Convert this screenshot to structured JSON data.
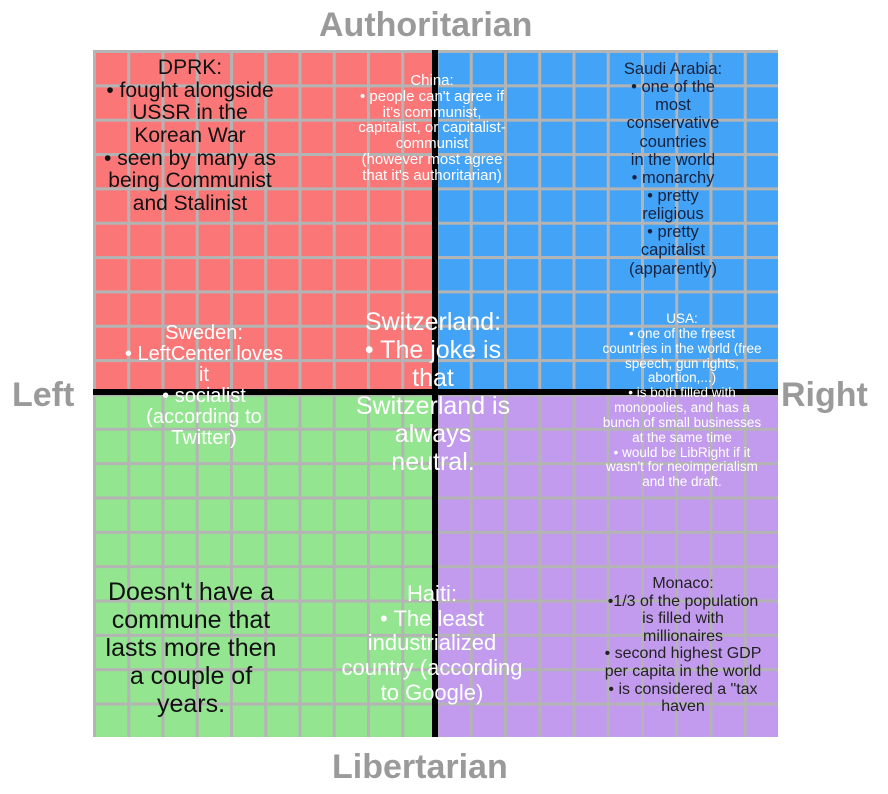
{
  "axes": {
    "top": "Authoritarian",
    "bottom": "Libertarian",
    "left": "Left",
    "right": "Right"
  },
  "colors": {
    "auth_left": "#fb7777",
    "auth_right": "#43a3f7",
    "lib_left": "#93e58f",
    "lib_right": "#c29bef"
  },
  "labels": {
    "dprk": "DPRK:\n• fought alongside\nUSSR in the\nKorean War\n• seen by many as\nbeing Communist\nand Stalinist",
    "china": "China:\n• people can't agree if\nit's communist,\ncapitalist, or capitalist-\ncommunist\n(however most agree\nthat it's authoritarian)",
    "saudi": "Saudi Arabia:\n• one of the most\nconservative countries\nin the world\n• monarchy\n• pretty religious\n• pretty capitalist\n(apparently)",
    "sweden": "Sweden:\n• LeftCenter loves\nit\n• socialist\n(according to\nTwitter)",
    "switzerland": "Switzerland:\n• The joke is\nthat\nSwitzerland is\nalways\nneutral.",
    "usa": "USA:\n• one of the freest\ncountries in the world (free\nspeech, gun rights,\nabortion,...)\n• is both filled with\nmonopolies, and has a\nbunch of small businesses\nat the same time\n• would be LibRight if it\nwasn't for neoimperialism\nand the draft.",
    "commune": "Doesn't have a\ncommune that\nlasts more then\na couple of\nyears.",
    "haiti": "Haiti:\n• The least\nindustrialized\ncountry (according\nto Google)",
    "monaco": "Monaco:\n•1/3 of the population\nis filled with\nmillionaires\n• second highest GDP\nper capita in the world\n• is considered a \"tax\nhaven"
  }
}
